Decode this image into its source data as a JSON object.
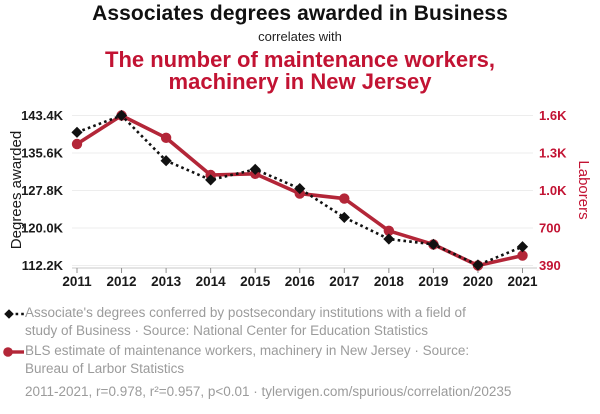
{
  "header": {
    "title": "Associates degrees awarded in Business",
    "connector": "correlates with",
    "subtitle_line1": "The number of maintenance workers,",
    "subtitle_line2": "machinery in New Jersey"
  },
  "chart_data": {
    "type": "line",
    "x": [
      2011,
      2012,
      2013,
      2014,
      2015,
      2016,
      2017,
      2018,
      2019,
      2020,
      2021
    ],
    "x_axis": {
      "tick_labels": [
        "2011",
        "2012",
        "2013",
        "2014",
        "2015",
        "2016",
        "2017",
        "2018",
        "2019",
        "2020",
        "2021"
      ]
    },
    "left_axis": {
      "label": "Degrees awarded",
      "color": "#1a1a1a",
      "ticks": [
        {
          "label": "143.4K",
          "value": 143400
        },
        {
          "label": "135.6K",
          "value": 135600
        },
        {
          "label": "127.8K",
          "value": 127800
        },
        {
          "label": "120.0K",
          "value": 120000
        },
        {
          "label": "112.2K",
          "value": 112200
        }
      ]
    },
    "right_axis": {
      "label": "Laborers",
      "color": "#c21333",
      "ticks": [
        {
          "label": "1.6K",
          "value": 1600
        },
        {
          "label": "1.3K",
          "value": 1300
        },
        {
          "label": "1.0K",
          "value": 1000
        },
        {
          "label": "700",
          "value": 700
        },
        {
          "label": "390",
          "value": 390
        }
      ]
    },
    "series": [
      {
        "name": "Associates degrees awarded in Business",
        "axis": "left",
        "color": "#111111",
        "line_style": "dotted",
        "marker": "diamond",
        "values": [
          139900,
          143400,
          134000,
          130000,
          132200,
          128200,
          122200,
          117700,
          116600,
          112300,
          116100
        ]
      },
      {
        "name": "The number of maintenance workers, machinery in New Jersey",
        "axis": "right",
        "color": "#b32638",
        "line_style": "solid",
        "marker": "circle",
        "values": [
          1370,
          1600,
          1420,
          1120,
          1130,
          970,
          930,
          670,
          560,
          390,
          470
        ]
      }
    ],
    "grid": true,
    "legend_position": "bottom"
  },
  "legend": {
    "series1": {
      "marker": "black-diamond-dotted",
      "line1": "Associate's degrees conferred by postsecondary institutions with a field of",
      "line2": "study of Business · Source: National Center for Education Statistics"
    },
    "series2": {
      "marker": "red-circle-solid",
      "line1": "BLS estimate of maintenance workers, machinery in New Jersey · Source:",
      "line2": "Bureau of Larbor Statistics"
    }
  },
  "footer": {
    "text": "2011-2021, r=0.978, r²=0.957, p<0.01 · tylervigen.com/spurious/correlation/20235"
  }
}
